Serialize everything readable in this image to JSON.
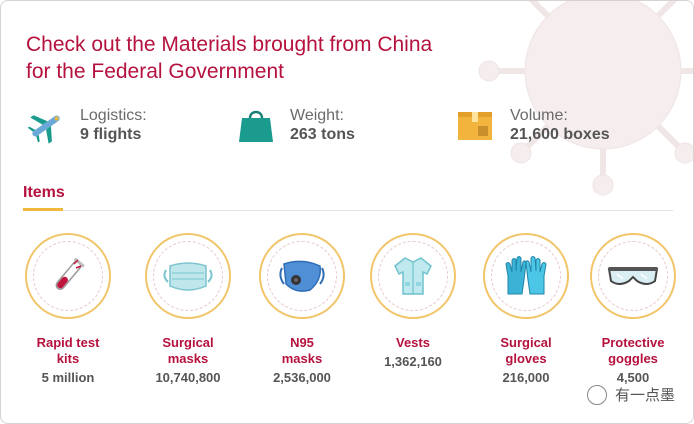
{
  "header": {
    "title_line1": "Check out the Materials brought from China",
    "title_line2": "for the Federal Government"
  },
  "stats": [
    {
      "label": "Logistics:",
      "value": "9 flights",
      "icon": "airplane-icon"
    },
    {
      "label": "Weight:",
      "value": "263 tons",
      "icon": "shopping-bag-icon"
    },
    {
      "label": "Volume:",
      "value": "21,600 boxes",
      "icon": "boxes-icon"
    }
  ],
  "items_heading": "Items",
  "items": [
    {
      "name1": "Rapid test",
      "name2": "kits",
      "qty": "5 million",
      "icon": "test-tube-icon"
    },
    {
      "name1": "Surgical",
      "name2": "masks",
      "qty": "10,740,800",
      "icon": "surgical-mask-icon"
    },
    {
      "name1": "N95",
      "name2": "masks",
      "qty": "2,536,000",
      "icon": "n95-mask-icon"
    },
    {
      "name1": "Vests",
      "name2": "",
      "qty": "1,362,160",
      "icon": "vest-icon"
    },
    {
      "name1": "Surgical",
      "name2": "gloves",
      "qty": "216,000",
      "icon": "gloves-icon"
    },
    {
      "name1": "Protective",
      "name2": "goggles",
      "qty": "4,500",
      "icon": "goggles-icon"
    }
  ],
  "watermark": "有一点墨",
  "colors": {
    "accent": "#b5123e",
    "gold": "#f2c56a",
    "teal": "#1a9b8e",
    "blue": "#3b82c4"
  }
}
